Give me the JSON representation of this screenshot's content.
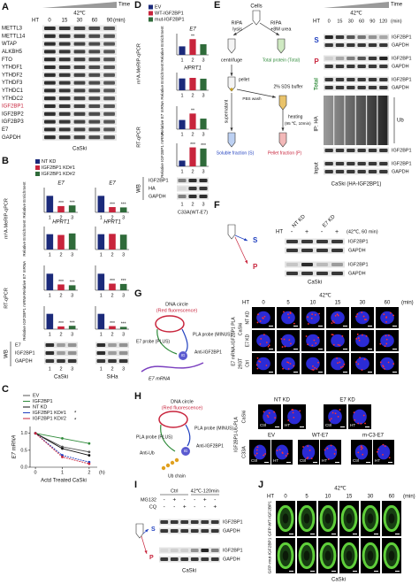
{
  "panels": {
    "A": {
      "label": "A",
      "time": "Time",
      "temp": "42℃",
      "ht": "HT",
      "times": [
        "0",
        "15",
        "30",
        "60",
        "90"
      ],
      "unit": "(min)",
      "proteins": [
        "METTL3",
        "METTL14",
        "WTAP",
        "ALKBH5",
        "FTO",
        "YTHDF1",
        "YTHDF2",
        "YTHDF3",
        "YTHDC1",
        "YTHDC2",
        "IGF2BP1",
        "IGF2BP2",
        "IGF2BP3",
        "E7",
        "GAPDH"
      ],
      "cell": "CaSki"
    },
    "B": {
      "label": "B",
      "legend": [
        {
          "name": "NT KD",
          "color": "#1b2a7a"
        },
        {
          "name": "IGF2BP1 KD#1",
          "color": "#c8243c"
        },
        {
          "name": "IGF2BP1 KD#2",
          "color": "#2f6b3a"
        }
      ],
      "assay1": "m⁶A-MeRIP-qPCR",
      "assay2": "RT-qPCR",
      "ylabels": [
        "Relative Enrichment",
        "Relative Enrichment",
        "Relative E7 mRNA",
        "Relative IGF2BP1 mRNA"
      ],
      "wb": "WB",
      "wb_rows": [
        "E7",
        "IGF2BP1",
        "GAPDH"
      ],
      "lanes": [
        "1",
        "2",
        "3"
      ],
      "cells": [
        "CaSki",
        "SiHa"
      ]
    },
    "C": {
      "label": "C"
    },
    "D": {
      "label": "D",
      "legend": [
        {
          "name": "EV",
          "color": "#1b2a7a"
        },
        {
          "name": "WT-IGF2BP1",
          "color": "#c8243c"
        },
        {
          "name": "mut-IGF2BP1",
          "color": "#2f6b3a"
        }
      ],
      "assay1": "m⁶A-MeRIP-qPCR",
      "assay2": "RT-qPCR",
      "ylabels": [
        "Relative Enrichment",
        "Relative Enrichment",
        "Relative E7 mRNA",
        "Relative IGF2BP1 mRNA"
      ],
      "wb": "WB",
      "wb_rows": [
        "IGF2BP1",
        "HA",
        "GAPDH"
      ],
      "lanes": [
        "1",
        "2",
        "3"
      ],
      "cell": "C33A(WT-E7)"
    },
    "E": {
      "label": "E",
      "diagram": {
        "cells": "Cells",
        "ripa1": "RIPA",
        "lysis": "lysis",
        "ripa2": "RIPA",
        "urea": "+8M urea",
        "centrifuge": "centrifuge",
        "total": "Total protein (Total)",
        "pellet": "pellet",
        "pbs": "PBS wash",
        "sds": "2% SDS buffer",
        "supernatant": "supernatant",
        "heating": "heating",
        "heat_cond": "(95 ℃, 10min)",
        "soluble": "Soluble fraction (S)",
        "pellet_fraction": "Pellet fraction (P)"
      },
      "time": "Time",
      "temp": "42℃",
      "ht": "HT",
      "times": [
        "0",
        "15",
        "30",
        "60",
        "90",
        "120"
      ],
      "unit": "(min)",
      "s": "S",
      "p": "P",
      "total": "Total",
      "ip": "IP: HA",
      "ub": "Ub",
      "input": "Input",
      "rows": [
        "IGF2BP1",
        "GAPDH",
        "IGF2BP1",
        "GAPDH",
        "IGF2BP1",
        "GAPDH",
        "IGF2BP1",
        "IGF2BP1",
        "GAPDH"
      ],
      "cell": "CaSki (HA-IGF2BP1)"
    },
    "F": {
      "label": "F",
      "groups": [
        "NT KD",
        "E7 KD"
      ],
      "ht": "HT",
      "signs": [
        "-",
        "+",
        "-",
        "+"
      ],
      "cond": "(42℃, 60 min)",
      "s": "S",
      "p": "P",
      "rows": [
        "IGF2BP1",
        "GAPDH",
        "IGF2BP1",
        "GAPDH"
      ],
      "cell": "CaSki"
    },
    "G": {
      "label": "G",
      "circle": "DNA circle",
      "fluor": "(Red fluorescence)",
      "minus": "PLA probe (MINUS)",
      "plus": "E7 probe (PLUS)",
      "anti": "Anti-IGF2BP1",
      "mrna": "E7 mRNA",
      "ig": "IG",
      "temp": "42℃",
      "ht": "HT",
      "times": [
        "0",
        "5",
        "10",
        "15",
        "30",
        "60"
      ],
      "unit": "(min)",
      "rows": [
        "NT KD",
        "E7 KD",
        "Ctrl"
      ],
      "cells": [
        "CaSki",
        "293T"
      ],
      "assay": "E7 mRNA-IGF2BP1 PLA"
    },
    "H": {
      "label": "H",
      "circle": "DNA circle",
      "fluor": "(Red fluorescence)",
      "minus": "PLA probe (MINUS)",
      "plus": "PLA probe (PLUS)",
      "anti1": "Anti-IGF2BP1",
      "anti2": "Anti-Ub",
      "ub": "Ub chain",
      "ig": "IG",
      "groups1": [
        "NT KD",
        "E7 KD"
      ],
      "groups2": [
        "EV",
        "WT-E7",
        "m-C3-E7"
      ],
      "ctrl": "Ctrl",
      "ht": "HT",
      "cells": [
        "CaSki",
        "C33A"
      ],
      "assay": "IGF2BP1-Ub-PLA"
    },
    "I": {
      "label": "I",
      "groups": [
        "Ctrl",
        "42℃-120min"
      ],
      "rowlabels": [
        "MG132",
        "CQ"
      ],
      "mg132": [
        "-",
        "+",
        "-",
        "-",
        "+",
        "-"
      ],
      "cq": [
        "-",
        "-",
        "+",
        "-",
        "-",
        "+"
      ],
      "s": "S",
      "p": "P",
      "rows": [
        "IGF2BP1",
        "GAPDH",
        "IGF2BP1",
        "GAPDH"
      ],
      "cell": "CaSki"
    },
    "J": {
      "label": "J",
      "temp": "42℃",
      "ht": "HT",
      "times": [
        "0",
        "5",
        "10",
        "15",
        "30",
        "60"
      ],
      "unit": "(min)",
      "rows": [
        "GFP-WT-IGF2BP1",
        "GFP-mut-IGF2BP1"
      ],
      "cell": "CaSki"
    }
  },
  "chart_data": [
    {
      "type": "bar",
      "title": "E7",
      "categories": [
        "1",
        "2",
        "3"
      ],
      "values": [
        1,
        0.38,
        0.42
      ],
      "colors": [
        "#1b2a7a",
        "#c8243c",
        "#2f6b3a"
      ],
      "ylim": [
        0,
        1.5
      ],
      "annotations": [
        null,
        "***",
        "***"
      ]
    },
    {
      "type": "bar",
      "title": "E7",
      "categories": [
        "1",
        "2",
        "3"
      ],
      "values": [
        1,
        0.32,
        0.3
      ],
      "colors": [
        "#1b2a7a",
        "#c8243c",
        "#2f6b3a"
      ],
      "ylim": [
        0,
        1.5
      ],
      "annotations": [
        null,
        "***",
        "***"
      ]
    },
    {
      "type": "bar",
      "title": "HPRT1",
      "categories": [
        "1",
        "2",
        "3"
      ],
      "values": [
        1,
        0.95,
        1.05
      ],
      "colors": [
        "#1b2a7a",
        "#c8243c",
        "#2f6b3a"
      ],
      "ylim": [
        0,
        1.5
      ]
    },
    {
      "type": "bar",
      "title": "HPRT1",
      "categories": [
        "1",
        "2",
        "3"
      ],
      "values": [
        1,
        1.02,
        0.97
      ],
      "colors": [
        "#1b2a7a",
        "#c8243c",
        "#2f6b3a"
      ],
      "ylim": [
        0,
        1.5
      ]
    },
    {
      "type": "bar",
      "categories": [
        "1",
        "2",
        "3"
      ],
      "values": [
        1,
        0.35,
        0.3
      ],
      "colors": [
        "#1b2a7a",
        "#c8243c",
        "#2f6b3a"
      ],
      "ylim": [
        0,
        1.5
      ],
      "annotations": [
        null,
        "***",
        "***"
      ]
    },
    {
      "type": "bar",
      "categories": [
        "1",
        "2",
        "3"
      ],
      "values": [
        1,
        0.4,
        0.38
      ],
      "colors": [
        "#1b2a7a",
        "#c8243c",
        "#2f6b3a"
      ],
      "ylim": [
        0,
        1.5
      ],
      "annotations": [
        null,
        "***",
        "***"
      ]
    },
    {
      "type": "bar",
      "categories": [
        "1",
        "2",
        "3"
      ],
      "values": [
        1,
        0.18,
        0.22
      ],
      "colors": [
        "#1b2a7a",
        "#c8243c",
        "#2f6b3a"
      ],
      "ylim": [
        0,
        1.5
      ],
      "annotations": [
        null,
        "***",
        "***"
      ]
    },
    {
      "type": "bar",
      "categories": [
        "1",
        "2",
        "3"
      ],
      "values": [
        1,
        0.2,
        0.15
      ],
      "colors": [
        "#1b2a7a",
        "#c8243c",
        "#2f6b3a"
      ],
      "ylim": [
        0,
        1.5
      ],
      "annotations": [
        null,
        "***",
        "***"
      ]
    },
    {
      "type": "bar",
      "title": "E7",
      "categories": [
        "1",
        "2",
        "3"
      ],
      "values": [
        1,
        1.85,
        1.25
      ],
      "colors": [
        "#1b2a7a",
        "#c8243c",
        "#2f6b3a"
      ],
      "ylim": [
        0,
        2.5
      ],
      "annotations": [
        null,
        "**",
        null
      ]
    },
    {
      "type": "bar",
      "title": "HPRT1",
      "categories": [
        "1",
        "2",
        "3"
      ],
      "values": [
        1,
        1.05,
        0.98
      ],
      "colors": [
        "#1b2a7a",
        "#c8243c",
        "#2f6b3a"
      ],
      "ylim": [
        0,
        1.5
      ]
    },
    {
      "type": "bar",
      "categories": [
        "1",
        "2",
        "3"
      ],
      "values": [
        1,
        1.7,
        1.15
      ],
      "colors": [
        "#1b2a7a",
        "#c8243c",
        "#2f6b3a"
      ],
      "ylim": [
        0,
        2.5
      ],
      "annotations": [
        null,
        "**",
        null
      ]
    },
    {
      "type": "bar",
      "categories": [
        "1",
        "2",
        "3"
      ],
      "values": [
        1,
        3.3,
        3.1
      ],
      "colors": [
        "#1b2a7a",
        "#c8243c",
        "#2f6b3a"
      ],
      "ylim": [
        0,
        4
      ],
      "annotations": [
        null,
        "***",
        "***"
      ]
    },
    {
      "type": "line",
      "xlabel": "Actd Treated CaSki",
      "ylabel": "E7 mRNA",
      "xunit": "(h)",
      "x": [
        0,
        1,
        2
      ],
      "xlim": [
        -0.2,
        2.3
      ],
      "ylim": [
        0,
        1.2
      ],
      "xticks": [
        0,
        1,
        2
      ],
      "yticks": [
        {
          "value": 0,
          "label": "0.0"
        },
        0.5,
        {
          "value": 1,
          "label": "1.0"
        }
      ],
      "series": [
        {
          "name": "EV",
          "color": "#555555",
          "values": [
            1,
            0.6,
            0.45
          ]
        },
        {
          "name": "IGF2BP1",
          "color": "#2f8b3a",
          "values": [
            1,
            0.85,
            0.7
          ]
        },
        {
          "name": "NT KD",
          "color": "#111111",
          "values": [
            1,
            0.55,
            0.35
          ]
        },
        {
          "name": "IGF2BP1 KD#1",
          "color": "#1f3fbf",
          "values": [
            1,
            0.35,
            0.15
          ]
        },
        {
          "name": "IGF2BP1 KD#2",
          "color": "#c8243c",
          "values": [
            1,
            0.3,
            0.1
          ]
        }
      ],
      "annotations": [
        "*",
        "*"
      ]
    }
  ]
}
